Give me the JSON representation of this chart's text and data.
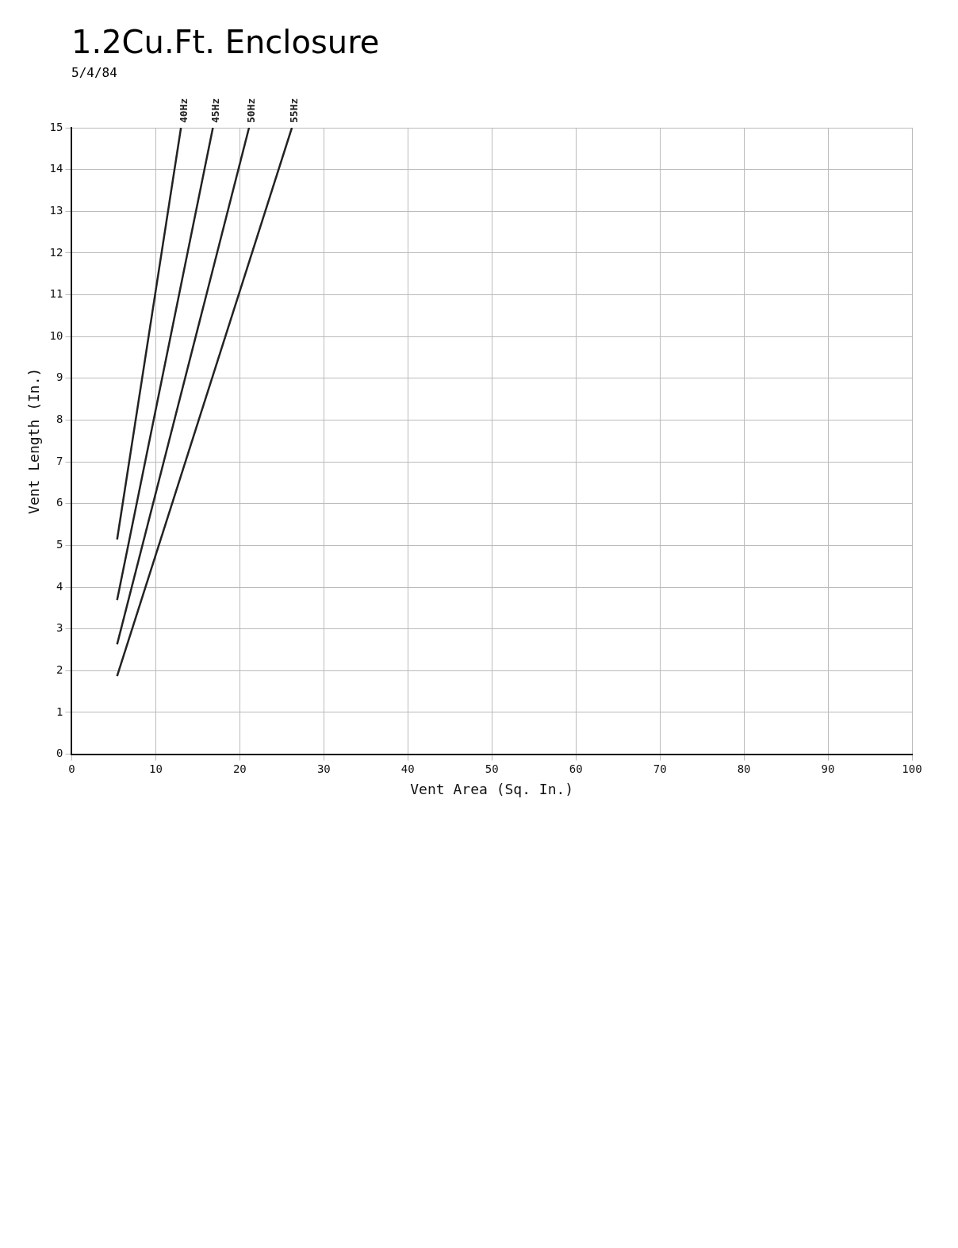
{
  "chart_data": {
    "type": "line",
    "title": "1.2Cu.Ft. Enclosure",
    "xlabel": "Vent Area (Sq. In.)",
    "ylabel": "Vent Length (In.)",
    "annotations": [
      "5/4/84"
    ],
    "series": [
      {
        "name": "40Hz",
        "color": "#222222",
        "x": [
          5.4,
          13.0
        ],
        "values": [
          5.14,
          15
        ]
      },
      {
        "name": "45Hz",
        "color": "#222222",
        "x": [
          5.4,
          16.8
        ],
        "values": [
          3.69,
          15
        ]
      },
      {
        "name": "50Hz",
        "color": "#222222",
        "x": [
          5.4,
          21.1
        ],
        "values": [
          2.63,
          15
        ]
      },
      {
        "name": "55Hz",
        "color": "#222222",
        "x": [
          5.4,
          26.2
        ],
        "values": [
          1.87,
          15
        ]
      }
    ],
    "xlim": [
      0,
      100
    ],
    "xticks": [
      0,
      10,
      20,
      30,
      40,
      50,
      60,
      70,
      80,
      90,
      100
    ],
    "ylim": [
      0,
      15
    ],
    "yticks": [
      0,
      1,
      2,
      3,
      4,
      5,
      6,
      7,
      8,
      9,
      10,
      11,
      12,
      13,
      14,
      15
    ],
    "grid": true,
    "legend": false,
    "marker": "none",
    "line_style": "solid"
  }
}
